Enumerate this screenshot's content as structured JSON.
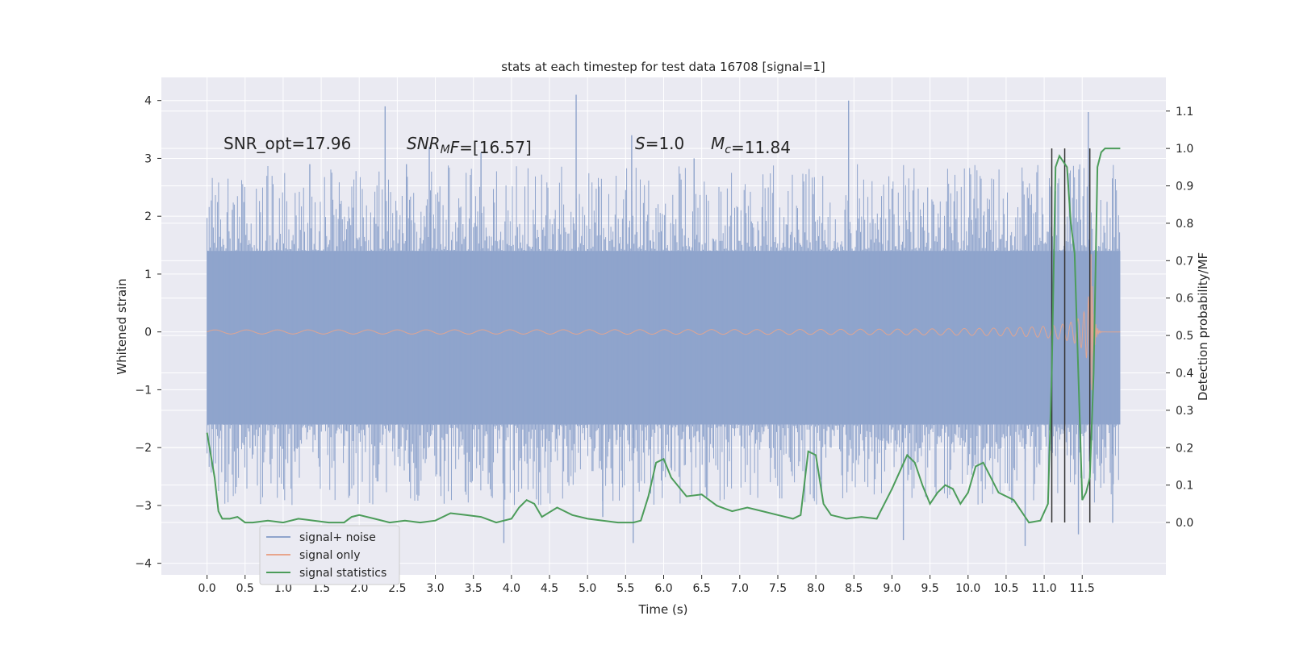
{
  "chart_data": {
    "type": "line",
    "title": "stats at each timestep for test data 16708 [signal=1]",
    "xlabel": "Time (s)",
    "ylabel": "Whitened strain",
    "y2label": "Detection probability/MF",
    "xlim": [
      -0.6,
      12.6
    ],
    "ylim": [
      -4.2,
      4.4
    ],
    "y2lim": [
      -0.14,
      1.19
    ],
    "x_ticks": [
      0.0,
      0.5,
      1.0,
      1.5,
      2.0,
      2.5,
      3.0,
      3.5,
      4.0,
      4.5,
      5.0,
      5.5,
      6.0,
      6.5,
      7.0,
      7.5,
      8.0,
      8.5,
      9.0,
      9.5,
      10.0,
      10.5,
      11.0,
      11.5
    ],
    "x_tick_labels": [
      "0.0",
      "0.5",
      "1.0",
      "1.5",
      "2.0",
      "2.5",
      "3.0",
      "3.5",
      "4.0",
      "4.5",
      "5.0",
      "5.5",
      "6.0",
      "6.5",
      "7.0",
      "7.5",
      "8.0",
      "8.5",
      "9.0",
      "9.5",
      "10.0",
      "10.5",
      "11.0",
      "11.5"
    ],
    "y_ticks": [
      -4,
      -3,
      -2,
      -1,
      0,
      1,
      2,
      3,
      4
    ],
    "y_tick_labels": [
      "−4",
      "−3",
      "−2",
      "−1",
      "0",
      "1",
      "2",
      "3",
      "4"
    ],
    "y2_ticks": [
      0.0,
      0.1,
      0.2,
      0.3,
      0.4,
      0.5,
      0.6,
      0.7,
      0.8,
      0.9,
      1.0,
      1.1
    ],
    "y2_tick_labels": [
      "0.0",
      "0.1",
      "0.2",
      "0.3",
      "0.4",
      "0.5",
      "0.6",
      "0.7",
      "0.8",
      "0.9",
      "1.0",
      "1.1"
    ],
    "grid": true,
    "legend_position": "bottom-left",
    "annotations": [
      {
        "parts": [
          {
            "t": "SNR_opt=17.96",
            "italic": false
          }
        ]
      },
      {
        "parts": [
          {
            "t": "SNR",
            "italic": true
          },
          {
            "t": "M",
            "italic": true,
            "sub": true
          },
          {
            "t": "F",
            "italic": true
          },
          {
            "t": "=[16.57]",
            "italic": false
          }
        ]
      },
      {
        "parts": [
          {
            "t": "S",
            "italic": true
          },
          {
            "t": "=1.0",
            "italic": false
          }
        ]
      },
      {
        "parts": [
          {
            "t": "M",
            "italic": true
          },
          {
            "t": "c",
            "italic": true,
            "sub": true
          },
          {
            "t": "=11.84",
            "italic": false
          }
        ]
      }
    ],
    "series": [
      {
        "name": "signal+ noise",
        "axis": "left",
        "color": "#8fa4cc",
        "kind": "noise-band",
        "x_range": [
          0.0,
          12.0
        ],
        "band_core": [
          -1.6,
          1.4
        ],
        "typical_peak_top": 2.3,
        "typical_peak_bottom": -2.4,
        "extreme_spikes": [
          {
            "x": 2.34,
            "y": 3.9
          },
          {
            "x": 2.62,
            "y": 2.9
          },
          {
            "x": 2.92,
            "y": 3.2
          },
          {
            "x": 3.6,
            "y": 3.1
          },
          {
            "x": 4.85,
            "y": 4.1
          },
          {
            "x": 5.58,
            "y": 3.4
          },
          {
            "x": 8.43,
            "y": 4.0
          },
          {
            "x": 11.58,
            "y": 3.8
          },
          {
            "x": 3.9,
            "y": -3.65
          },
          {
            "x": 5.6,
            "y": -3.65
          },
          {
            "x": 9.15,
            "y": -3.6
          },
          {
            "x": 10.75,
            "y": -3.7
          },
          {
            "x": 11.45,
            "y": -3.5
          },
          {
            "x": 5.2,
            "y": -3.2
          },
          {
            "x": 11.9,
            "y": -3.3
          },
          {
            "x": 1.35,
            "y": 2.9
          },
          {
            "x": 6.4,
            "y": 3.0
          }
        ]
      },
      {
        "name": "signal only",
        "axis": "left",
        "color": "#e8a58c",
        "kind": "chirp",
        "x_range": [
          0.0,
          12.0
        ],
        "merger_time": 11.62,
        "peak_amplitude": 1.55
      },
      {
        "name": "signal statistics",
        "axis": "right",
        "color": "#4c9c5a",
        "kind": "line",
        "x": [
          0.0,
          0.05,
          0.1,
          0.15,
          0.2,
          0.3,
          0.4,
          0.5,
          0.6,
          0.8,
          1.0,
          1.2,
          1.4,
          1.6,
          1.8,
          1.9,
          2.0,
          2.2,
          2.4,
          2.6,
          2.8,
          3.0,
          3.2,
          3.4,
          3.6,
          3.8,
          4.0,
          4.1,
          4.2,
          4.3,
          4.4,
          4.6,
          4.8,
          5.0,
          5.2,
          5.4,
          5.6,
          5.7,
          5.8,
          5.9,
          6.0,
          6.1,
          6.3,
          6.5,
          6.7,
          6.9,
          7.1,
          7.3,
          7.5,
          7.7,
          7.8,
          7.9,
          8.0,
          8.1,
          8.2,
          8.4,
          8.6,
          8.8,
          9.0,
          9.2,
          9.3,
          9.4,
          9.5,
          9.6,
          9.7,
          9.8,
          9.9,
          10.0,
          10.1,
          10.2,
          10.4,
          10.6,
          10.8,
          10.95,
          11.05,
          11.1,
          11.15,
          11.2,
          11.3,
          11.35,
          11.4,
          11.5,
          11.55,
          11.6,
          11.65,
          11.7,
          11.75,
          11.8,
          11.9,
          12.0
        ],
        "y": [
          0.24,
          0.18,
          0.12,
          0.03,
          0.01,
          0.01,
          0.015,
          0.0,
          0.0,
          0.005,
          0.0,
          0.01,
          0.005,
          0.0,
          0.0,
          0.015,
          0.02,
          0.01,
          0.0,
          0.005,
          0.0,
          0.005,
          0.025,
          0.02,
          0.015,
          0.0,
          0.01,
          0.04,
          0.06,
          0.05,
          0.015,
          0.04,
          0.02,
          0.01,
          0.005,
          0.0,
          0.0,
          0.005,
          0.07,
          0.16,
          0.17,
          0.12,
          0.07,
          0.075,
          0.045,
          0.03,
          0.04,
          0.03,
          0.02,
          0.01,
          0.02,
          0.19,
          0.18,
          0.05,
          0.02,
          0.01,
          0.015,
          0.01,
          0.09,
          0.18,
          0.16,
          0.1,
          0.05,
          0.08,
          0.1,
          0.09,
          0.05,
          0.08,
          0.15,
          0.16,
          0.08,
          0.06,
          0.0,
          0.005,
          0.05,
          0.4,
          0.95,
          0.98,
          0.95,
          0.8,
          0.72,
          0.06,
          0.08,
          0.12,
          0.4,
          0.95,
          0.99,
          1.0,
          1.0,
          1.0
        ]
      },
      {
        "name": "",
        "axis": "right",
        "color": "#333333",
        "kind": "vlines",
        "x": [
          11.1,
          11.27,
          11.6
        ],
        "y_range": [
          0.0,
          1.0
        ]
      }
    ]
  }
}
